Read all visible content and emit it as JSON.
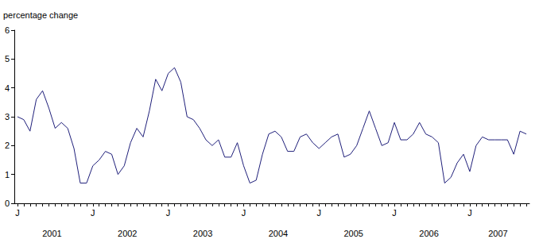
{
  "chart_data": {
    "type": "line",
    "y_label": "percentage change",
    "categories": [
      "J",
      null,
      null,
      null,
      null,
      null,
      null,
      null,
      null,
      null,
      null,
      null,
      "J",
      null,
      null,
      null,
      null,
      null,
      null,
      null,
      null,
      null,
      null,
      null,
      "J",
      null,
      null,
      null,
      null,
      null,
      null,
      null,
      null,
      null,
      null,
      null,
      "J",
      null,
      null,
      null,
      null,
      null,
      null,
      null,
      null,
      null,
      null,
      null,
      "J",
      null,
      null,
      null,
      null,
      null,
      null,
      null,
      null,
      null,
      null,
      null,
      "J",
      null,
      null,
      null,
      null,
      null,
      null,
      null,
      null,
      null,
      null,
      null,
      "J",
      null,
      null,
      null,
      null,
      null,
      null,
      null,
      null,
      null
    ],
    "years": [
      "2001",
      "2002",
      "2003",
      "2004",
      "2005",
      "2006",
      "2007"
    ],
    "values": [
      3.0,
      2.9,
      2.5,
      3.6,
      3.9,
      3.3,
      2.6,
      2.8,
      2.6,
      1.9,
      0.7,
      0.7,
      1.3,
      1.5,
      1.8,
      1.7,
      1.0,
      1.3,
      2.1,
      2.6,
      2.3,
      3.2,
      4.3,
      3.9,
      4.5,
      4.7,
      4.2,
      3.0,
      2.9,
      2.6,
      2.2,
      2.0,
      2.2,
      1.6,
      1.6,
      2.1,
      1.3,
      0.7,
      0.8,
      1.7,
      2.4,
      2.5,
      2.3,
      1.8,
      1.8,
      2.3,
      2.4,
      2.1,
      1.9,
      2.1,
      2.3,
      2.4,
      1.6,
      1.7,
      2.0,
      2.6,
      3.2,
      2.6,
      2.0,
      2.1,
      2.8,
      2.2,
      2.2,
      2.4,
      2.8,
      2.4,
      2.3,
      2.1,
      0.7,
      0.9,
      1.4,
      1.7,
      1.1,
      2.0,
      2.3,
      2.2,
      2.2,
      2.2,
      2.2,
      1.7,
      2.5,
      2.4
    ],
    "color": "#1f1f7a",
    "ylim": [
      0,
      6
    ],
    "yticks": [
      0,
      1,
      2,
      3,
      4,
      5,
      6
    ],
    "grid": false
  }
}
